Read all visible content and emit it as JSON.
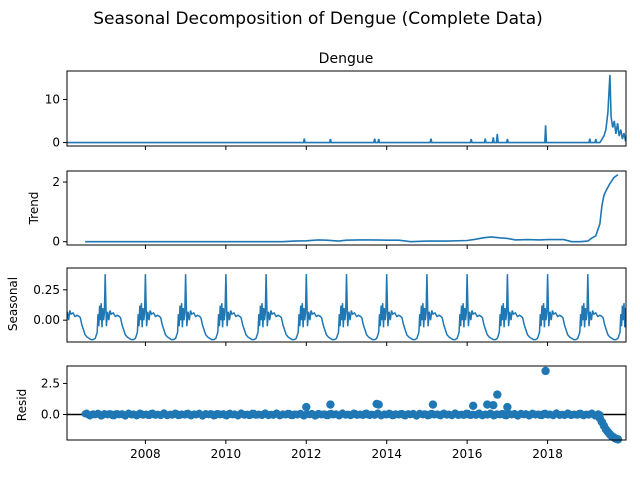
{
  "title": "Seasonal Decomposition of Dengue (Complete Data)",
  "colors": {
    "line": "#1f77b4",
    "marker": "#1f77b4",
    "zero_line": "#000000"
  },
  "chart_data": [
    {
      "type": "line",
      "name": "observed",
      "title": "Dengue",
      "ylabel": "",
      "xlim": [
        2006.05,
        2019.95
      ],
      "ylim": [
        -0.8,
        16.6
      ],
      "yticks": [
        0,
        10
      ],
      "ytick_labels": [
        "0",
        "10"
      ],
      "baseline": 0,
      "spikes": [
        [
          2011.95,
          0.9
        ],
        [
          2012.6,
          0.8
        ],
        [
          2013.7,
          0.9
        ],
        [
          2013.8,
          0.8
        ],
        [
          2015.1,
          0.9
        ],
        [
          2016.1,
          0.8
        ],
        [
          2016.45,
          0.9
        ],
        [
          2016.65,
          1.2
        ],
        [
          2016.75,
          2.0
        ],
        [
          2017.0,
          0.8
        ],
        [
          2017.95,
          4.0
        ],
        [
          2019.05,
          0.9
        ],
        [
          2019.2,
          0.8
        ]
      ],
      "tail": [
        [
          2019.3,
          0.0
        ],
        [
          2019.4,
          1.5
        ],
        [
          2019.45,
          3.0
        ],
        [
          2019.5,
          7.0
        ],
        [
          2019.55,
          15.7
        ],
        [
          2019.58,
          6.0
        ],
        [
          2019.62,
          3.5
        ],
        [
          2019.66,
          5.0
        ],
        [
          2019.7,
          2.0
        ],
        [
          2019.74,
          4.5
        ],
        [
          2019.78,
          1.5
        ],
        [
          2019.82,
          3.0
        ],
        [
          2019.86,
          0.8
        ],
        [
          2019.9,
          2.2
        ],
        [
          2019.94,
          0.3
        ]
      ]
    },
    {
      "type": "line",
      "name": "trend",
      "ylabel": "Trend",
      "xlim": [
        2006.05,
        2019.95
      ],
      "ylim": [
        -0.11,
        2.37
      ],
      "yticks": [
        0,
        2
      ],
      "ytick_labels": [
        "0",
        "2"
      ],
      "x": [
        2006.5,
        2011.4,
        2011.7,
        2012.0,
        2012.3,
        2012.5,
        2012.8,
        2013.0,
        2013.3,
        2013.6,
        2014.0,
        2014.3,
        2014.6,
        2015.0,
        2015.5,
        2016.0,
        2016.2,
        2016.4,
        2016.6,
        2016.8,
        2017.0,
        2017.2,
        2017.5,
        2017.8,
        2018.0,
        2018.4,
        2018.6,
        2018.8,
        2019.0,
        2019.1,
        2019.2,
        2019.3,
        2019.35,
        2019.4,
        2019.45,
        2019.55,
        2019.65,
        2019.75
      ],
      "y": [
        0.0,
        0.0,
        0.02,
        0.03,
        0.06,
        0.05,
        0.02,
        0.05,
        0.06,
        0.06,
        0.05,
        0.05,
        0.0,
        0.02,
        0.02,
        0.04,
        0.08,
        0.13,
        0.16,
        0.13,
        0.11,
        0.06,
        0.07,
        0.06,
        0.07,
        0.07,
        0.0,
        0.0,
        0.02,
        0.12,
        0.2,
        0.6,
        1.2,
        1.55,
        1.7,
        1.95,
        2.15,
        2.25
      ]
    },
    {
      "type": "line",
      "name": "seasonal",
      "ylabel": "Seasonal",
      "xlim": [
        2006.05,
        2019.95
      ],
      "ylim": [
        -0.18,
        0.43
      ],
      "yticks": [
        0.0,
        0.25
      ],
      "ytick_labels": [
        "0.00",
        "0.25"
      ],
      "period_start": 2006.0,
      "period_years": 1.0,
      "period_end": 2019.95,
      "pattern_phase": [
        0.0,
        0.03,
        0.06,
        0.09,
        0.12,
        0.15,
        0.2,
        0.25,
        0.3,
        0.35,
        0.38,
        0.42,
        0.46,
        0.5,
        0.55,
        0.6,
        0.65,
        0.7,
        0.75,
        0.8,
        0.82,
        0.84,
        0.86,
        0.88,
        0.9,
        0.92,
        0.94,
        0.96,
        0.98,
        1.0
      ],
      "pattern_value": [
        0.38,
        -0.05,
        0.07,
        0.0,
        0.08,
        0.05,
        0.06,
        0.03,
        0.04,
        0.03,
        0.02,
        -0.04,
        -0.08,
        -0.12,
        -0.14,
        -0.15,
        -0.16,
        -0.16,
        -0.15,
        -0.1,
        0.05,
        -0.05,
        0.12,
        0.0,
        0.14,
        -0.06,
        0.1,
        0.0,
        0.06,
        0.38
      ]
    },
    {
      "type": "scatter",
      "name": "residual",
      "ylabel": "Resid",
      "xlim": [
        2006.05,
        2019.95
      ],
      "ylim": [
        -2.05,
        3.9
      ],
      "yticks": [
        0.0,
        2.5
      ],
      "ytick_labels": [
        "0.0",
        "2.5"
      ],
      "xticks": [
        2008,
        2010,
        2012,
        2014,
        2016,
        2018
      ],
      "xtick_labels": [
        "2008",
        "2010",
        "2012",
        "2014",
        "2016",
        "2018"
      ],
      "baseline_points_from": 2006.5,
      "baseline_points_to": 2019.3,
      "baseline_points_step": 0.04,
      "outliers": [
        [
          2012.0,
          0.6
        ],
        [
          2012.6,
          0.8
        ],
        [
          2013.75,
          0.85
        ],
        [
          2013.8,
          0.8
        ],
        [
          2015.15,
          0.8
        ],
        [
          2016.15,
          0.7
        ],
        [
          2016.5,
          0.8
        ],
        [
          2016.65,
          0.75
        ],
        [
          2016.75,
          1.6
        ],
        [
          2017.0,
          0.6
        ],
        [
          2017.95,
          3.5
        ],
        [
          2019.3,
          -0.3
        ],
        [
          2019.35,
          -0.6
        ],
        [
          2019.4,
          -0.9
        ],
        [
          2019.45,
          -1.2
        ],
        [
          2019.5,
          -1.4
        ],
        [
          2019.55,
          -1.6
        ],
        [
          2019.6,
          -1.75
        ],
        [
          2019.65,
          -1.85
        ],
        [
          2019.7,
          -1.95
        ],
        [
          2019.75,
          -2.0
        ]
      ]
    }
  ]
}
